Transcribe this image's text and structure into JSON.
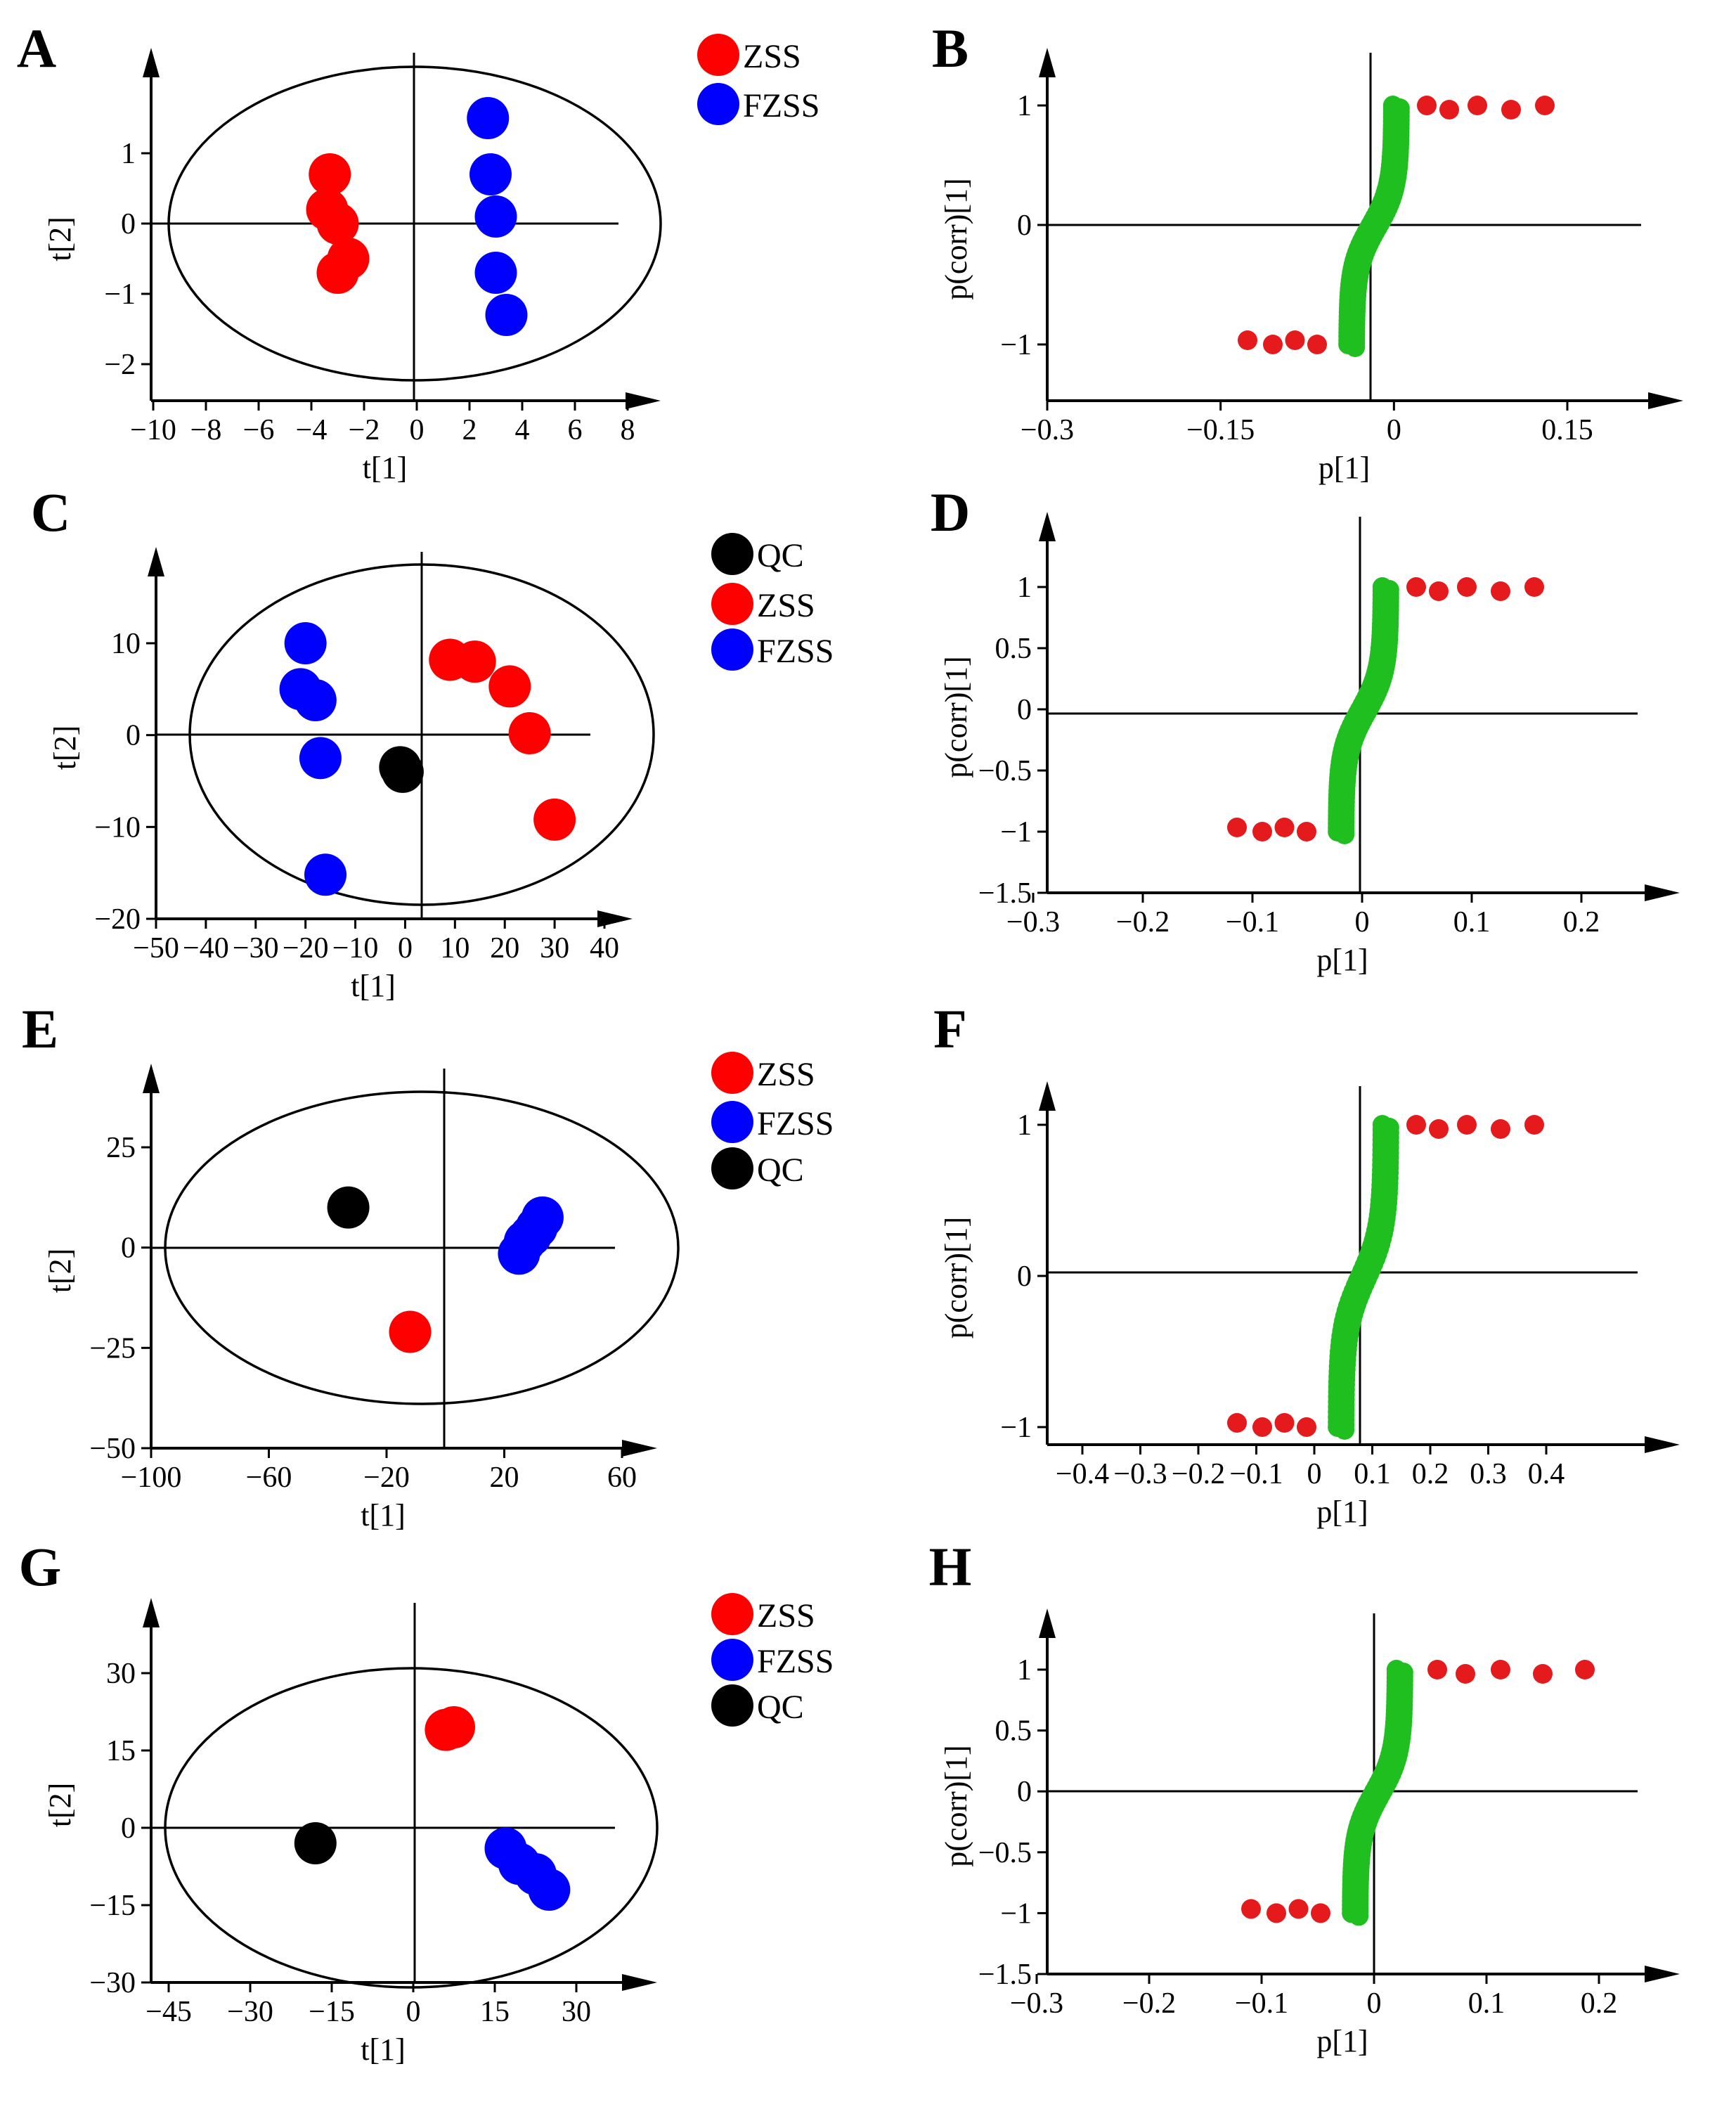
{
  "figure": {
    "title": ""
  },
  "colors": {
    "ZSS": "#ff0000",
    "FZSS": "#0000ff",
    "QC": "#000000",
    "highlight": "#e41a1c",
    "insignificant": "#1fbf1f",
    "axis": "#000000"
  },
  "chart_data": [
    {
      "panel": "A",
      "type": "scatter",
      "ellipse": true,
      "xlabel": "t[1]",
      "ylabel": "t[2]",
      "xlim": [
        -10,
        9.5
      ],
      "ylim": [
        -2.5,
        2.4
      ],
      "xticks": [
        -10,
        -8,
        -6,
        -4,
        -2,
        0,
        2,
        4,
        6,
        8
      ],
      "xticklabels": [
        "−10",
        "−8",
        "−6",
        "−4",
        "−2",
        "0",
        "2",
        "4",
        "6",
        "8"
      ],
      "yticks": [
        -2,
        -1,
        0,
        1
      ],
      "yticklabels": [
        "−2",
        "−1",
        "0",
        "1"
      ],
      "legend": [
        "ZSS",
        "FZSS"
      ],
      "series": [
        {
          "name": "ZSS",
          "x": [
            -3.3,
            -3.4,
            -3.0,
            -2.6,
            -3.0
          ],
          "y": [
            0.7,
            0.2,
            0.0,
            -0.5,
            -0.7
          ]
        },
        {
          "name": "FZSS",
          "x": [
            2.7,
            2.8,
            3.0,
            3.0,
            3.4
          ],
          "y": [
            1.5,
            0.7,
            0.1,
            -0.7,
            -1.3
          ]
        }
      ]
    },
    {
      "panel": "B",
      "type": "scatter",
      "xlabel": "p[1]",
      "ylabel": "p(corr)[1]",
      "xlim": [
        -0.3,
        0.3
      ],
      "ylim": [
        -1.5,
        1.5
      ],
      "xticks": [
        -0.3,
        -0.15,
        0,
        0.15
      ],
      "xticklabels": [
        "−0.3",
        "−0.15",
        "0",
        "0.15"
      ],
      "yticks": [
        -1,
        0,
        1
      ],
      "yticklabels": [
        "−1",
        "0",
        "1"
      ]
    },
    {
      "panel": "C",
      "type": "scatter",
      "ellipse": true,
      "xlabel": "t[1]",
      "ylabel": "t[2]",
      "xlim": [
        -52,
        45
      ],
      "ylim": [
        -20,
        18
      ],
      "xticks": [
        -50,
        -40,
        -30,
        -20,
        -10,
        0,
        10,
        20,
        30,
        40
      ],
      "xticklabels": [
        "−50",
        "−40",
        "−30",
        "−20",
        "−10",
        "0",
        "10",
        "20",
        "30",
        "40"
      ],
      "yticks": [
        -20,
        -10,
        0,
        10
      ],
      "yticklabels": [
        "−20",
        "−10",
        "0",
        "10"
      ],
      "legend": [
        "QC",
        "ZSS",
        "FZSS"
      ],
      "series": [
        {
          "name": "QC",
          "x": [
            -1,
            -0.5
          ],
          "y": [
            -3.5,
            -4.0
          ]
        },
        {
          "name": "ZSS",
          "x": [
            9,
            14,
            21,
            25,
            30
          ],
          "y": [
            8.2,
            8.0,
            5.3,
            0.2,
            -9.2
          ]
        },
        {
          "name": "FZSS",
          "x": [
            -20,
            -21,
            -18,
            -17,
            -16
          ],
          "y": [
            10.0,
            5.0,
            3.8,
            -2.5,
            -15.2
          ]
        }
      ]
    },
    {
      "panel": "D",
      "type": "scatter",
      "xlabel": "p[1]",
      "ylabel": "p(corr)[1]",
      "xlim": [
        -0.3,
        0.27
      ],
      "ylim": [
        -1.5,
        1.3
      ],
      "xticks": [
        -0.3,
        -0.2,
        -0.1,
        0,
        0.1,
        0.2
      ],
      "xticklabels": [
        "−0.3",
        "−0.2",
        "−0.1",
        "0",
        "0.1",
        "0.2"
      ],
      "yticks": [
        -1.5,
        -1,
        -0.5,
        0,
        0.5,
        1
      ],
      "yticklabels": [
        "−1.5",
        "−1",
        "−0.5",
        "0",
        "0.5",
        "1"
      ]
    },
    {
      "panel": "E",
      "type": "scatter",
      "ellipse": true,
      "xlabel": "t[1]",
      "ylabel": "t[2]",
      "xlim": [
        -100,
        68
      ],
      "ylim": [
        -50,
        37
      ],
      "xticks": [
        -100,
        -60,
        -20,
        20,
        60
      ],
      "xticklabels": [
        "−100",
        "−60",
        "−20",
        "20",
        "60"
      ],
      "yticks": [
        -50,
        -25,
        0,
        25
      ],
      "yticklabels": [
        "−50",
        "−25",
        "0",
        "25"
      ],
      "legend": [
        "ZSS",
        "FZSS",
        "QC"
      ],
      "series": [
        {
          "name": "ZSS",
          "x": [
            -12
          ],
          "y": [
            -21
          ]
        },
        {
          "name": "FZSS",
          "x": [
            25,
            27,
            29,
            31,
            33
          ],
          "y": [
            -1.5,
            1.5,
            3.0,
            5.0,
            7.5
          ]
        },
        {
          "name": "QC",
          "x": [
            -33
          ],
          "y": [
            10
          ]
        }
      ]
    },
    {
      "panel": "F",
      "type": "scatter",
      "xlabel": "p[1]",
      "ylabel": "p(corr)[1]",
      "xlim": [
        -0.46,
        0.46
      ],
      "ylim": [
        -1.05,
        1.35
      ],
      "xticks": [
        -0.4,
        -0.3,
        -0.2,
        -0.1,
        0,
        0.1,
        0.2,
        0.3,
        0.4
      ],
      "xticklabels": [
        "−0.4",
        "−0.3",
        "−0.2",
        "−0.1",
        "0",
        "0.1",
        "0.2",
        "0.3",
        "0.4"
      ],
      "yticks": [
        -1,
        0,
        1
      ],
      "yticklabels": [
        "−1",
        "0",
        "1"
      ]
    },
    {
      "panel": "G",
      "type": "scatter",
      "ellipse": true,
      "xlabel": "t[1]",
      "ylabel": "t[2]",
      "xlim": [
        -48,
        42
      ],
      "ylim": [
        -30,
        37
      ],
      "xticks": [
        -45,
        -30,
        -15,
        0,
        15,
        30
      ],
      "xticklabels": [
        "−45",
        "−30",
        "−15",
        "0",
        "15",
        "30"
      ],
      "yticks": [
        -30,
        -15,
        0,
        15,
        30
      ],
      "yticklabels": [
        "−30",
        "−15",
        "0",
        "15",
        "30"
      ],
      "legend": [
        "ZSS",
        "FZSS",
        "QC"
      ],
      "series": [
        {
          "name": "ZSS",
          "x": [
            6,
            7.5
          ],
          "y": [
            19,
            19.5
          ]
        },
        {
          "name": "FZSS",
          "x": [
            17,
            19.5,
            22.5,
            25
          ],
          "y": [
            -4,
            -7,
            -9,
            -12
          ]
        },
        {
          "name": "QC",
          "x": [
            -18
          ],
          "y": [
            -3
          ]
        }
      ]
    },
    {
      "panel": "H",
      "type": "scatter",
      "xlabel": "p[1]",
      "ylabel": "p(corr)[1]",
      "xlim": [
        -0.3,
        0.3
      ],
      "ylim": [
        -1.5,
        1.3
      ],
      "xticks": [
        -0.3,
        -0.2,
        -0.1,
        0,
        0.1,
        0.2
      ],
      "xticklabels": [
        "−0.3",
        "−0.2",
        "−0.1",
        "0",
        "0.1",
        "0.2"
      ],
      "yticks": [
        -1.5,
        -1,
        -0.5,
        0,
        0.5,
        1
      ],
      "yticklabels": [
        "−1.5",
        "−1",
        "−0.5",
        "0",
        "0.5",
        "1"
      ]
    }
  ]
}
